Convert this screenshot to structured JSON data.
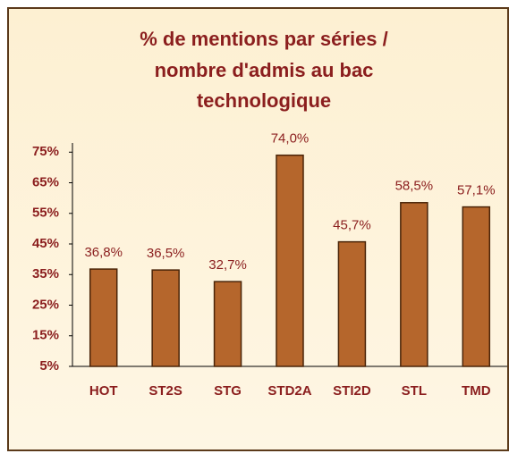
{
  "chart_data": {
    "type": "bar",
    "title": [
      "% de mentions par séries /",
      "nombre d'admis au bac",
      "technologique"
    ],
    "categories": [
      "HOT",
      "ST2S",
      "STG",
      "STD2A",
      "STI2D",
      "STL",
      "TMD"
    ],
    "values": [
      36.8,
      36.5,
      32.7,
      74.0,
      45.7,
      58.5,
      57.1
    ],
    "value_labels": [
      "36,8%",
      "36,5%",
      "32,7%",
      "74,0%",
      "45,7%",
      "58,5%",
      "57,1%"
    ],
    "color": "#b5662c",
    "ylim": [
      5,
      78
    ],
    "yticks": [
      {
        "value": 5,
        "label": "5%"
      },
      {
        "value": 15,
        "label": "15%"
      },
      {
        "value": 25,
        "label": "25%"
      },
      {
        "value": 35,
        "label": "35%"
      },
      {
        "value": 45,
        "label": "45%"
      },
      {
        "value": 55,
        "label": "55%"
      },
      {
        "value": 65,
        "label": "65%"
      },
      {
        "value": 75,
        "label": "75%"
      }
    ]
  }
}
